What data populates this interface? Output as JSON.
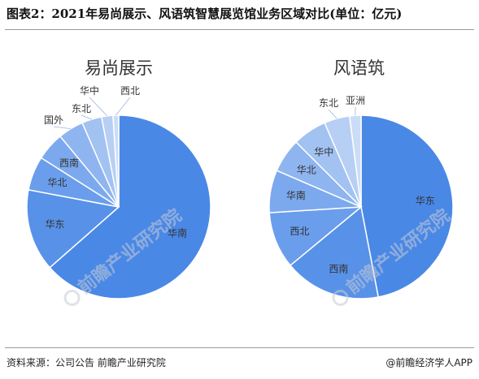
{
  "figure": {
    "title": "图表2：2021年易尚展示、风语筑智慧展览馆业务区域对比(单位：亿元)",
    "source": "资料来源：公司公告 前瞻产业研究院",
    "credit": "@前瞻经济学人APP",
    "watermark_text": "前瞻产业研究院",
    "colors": {
      "shades": [
        "#4a88e6",
        "#5892e8",
        "#6a9eec",
        "#7ca9ee",
        "#8fb5f0",
        "#a2c2f2",
        "#b7cff4",
        "#cbdcf6",
        "#dde7f8"
      ],
      "border": "#ffffff",
      "label": "#333333"
    }
  },
  "chart_data": [
    {
      "type": "pie",
      "title": "易尚展示",
      "labels": [
        "华南",
        "华东",
        "华北",
        "西南",
        "国外",
        "东北",
        "华中",
        "西北"
      ],
      "values": [
        63.5,
        14.5,
        6.0,
        5.0,
        4.5,
        3.5,
        2.0,
        1.0
      ],
      "unit": "亿元"
    },
    {
      "type": "pie",
      "title": "风语筑",
      "labels": [
        "华东",
        "西南",
        "西北",
        "华南",
        "华北",
        "华中",
        "东北",
        "亚洲"
      ],
      "values": [
        47.0,
        17.0,
        10.0,
        7.5,
        6.0,
        6.0,
        4.5,
        2.0
      ],
      "unit": "亿元"
    }
  ]
}
